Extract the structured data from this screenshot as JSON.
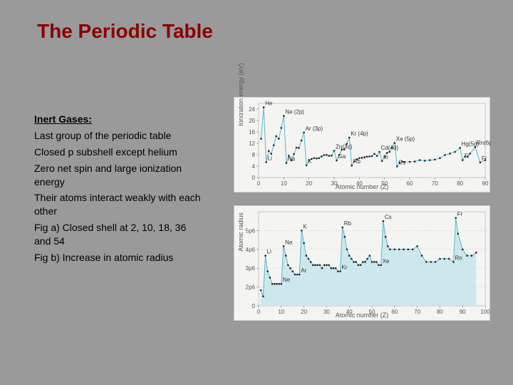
{
  "title": "The Periodic Table",
  "subtitle": "Inert Gases:",
  "bullets": [
    "Last group of the periodic table",
    "Closed p subshell except helium",
    "Zero net spin and large ionization energy",
    "Their atoms interact weakly with each other",
    "Fig a) Closed shell at 2, 10, 18, 36 and 54",
    "Fig b) Increase in atomic radius"
  ],
  "chart_a": {
    "type": "line",
    "xlabel": "Atomic number (Z)",
    "ylabel": "Ionization energy (eV)",
    "xlim": [
      0,
      90
    ],
    "ylim": [
      0,
      26
    ],
    "xtick_step": 10,
    "ytick_step": 4,
    "line_color": "#5bb5c9",
    "dot_color": "#222222",
    "background_color": "#f4f4f2",
    "grid_color": "#cccccc",
    "data": [
      {
        "z": 1,
        "y": 13.6
      },
      {
        "z": 2,
        "y": 24.6
      },
      {
        "z": 3,
        "y": 5.4
      },
      {
        "z": 4,
        "y": 9.3
      },
      {
        "z": 5,
        "y": 8.3
      },
      {
        "z": 6,
        "y": 11.3
      },
      {
        "z": 7,
        "y": 14.5
      },
      {
        "z": 8,
        "y": 13.6
      },
      {
        "z": 9,
        "y": 17.4
      },
      {
        "z": 10,
        "y": 21.6
      },
      {
        "z": 11,
        "y": 5.1
      },
      {
        "z": 12,
        "y": 7.6
      },
      {
        "z": 13,
        "y": 6.0
      },
      {
        "z": 14,
        "y": 8.2
      },
      {
        "z": 15,
        "y": 10.5
      },
      {
        "z": 16,
        "y": 10.4
      },
      {
        "z": 17,
        "y": 13.0
      },
      {
        "z": 18,
        "y": 15.8
      },
      {
        "z": 19,
        "y": 4.3
      },
      {
        "z": 20,
        "y": 6.1
      },
      {
        "z": 21,
        "y": 6.5
      },
      {
        "z": 22,
        "y": 6.8
      },
      {
        "z": 23,
        "y": 6.7
      },
      {
        "z": 24,
        "y": 6.8
      },
      {
        "z": 25,
        "y": 7.4
      },
      {
        "z": 26,
        "y": 7.9
      },
      {
        "z": 27,
        "y": 7.9
      },
      {
        "z": 28,
        "y": 7.6
      },
      {
        "z": 29,
        "y": 7.7
      },
      {
        "z": 30,
        "y": 9.4
      },
      {
        "z": 31,
        "y": 6.0
      },
      {
        "z": 32,
        "y": 7.9
      },
      {
        "z": 33,
        "y": 9.8
      },
      {
        "z": 34,
        "y": 9.8
      },
      {
        "z": 35,
        "y": 11.8
      },
      {
        "z": 36,
        "y": 14.0
      },
      {
        "z": 37,
        "y": 4.2
      },
      {
        "z": 38,
        "y": 5.7
      },
      {
        "z": 39,
        "y": 6.4
      },
      {
        "z": 40,
        "y": 6.8
      },
      {
        "z": 41,
        "y": 6.9
      },
      {
        "z": 42,
        "y": 7.1
      },
      {
        "z": 43,
        "y": 7.3
      },
      {
        "z": 44,
        "y": 7.4
      },
      {
        "z": 45,
        "y": 7.5
      },
      {
        "z": 46,
        "y": 8.3
      },
      {
        "z": 47,
        "y": 7.6
      },
      {
        "z": 48,
        "y": 9.0
      },
      {
        "z": 49,
        "y": 5.8
      },
      {
        "z": 50,
        "y": 7.3
      },
      {
        "z": 51,
        "y": 8.6
      },
      {
        "z": 52,
        "y": 9.0
      },
      {
        "z": 53,
        "y": 10.5
      },
      {
        "z": 54,
        "y": 12.1
      },
      {
        "z": 55,
        "y": 3.9
      },
      {
        "z": 56,
        "y": 5.2
      },
      {
        "z": 57,
        "y": 5.6
      },
      {
        "z": 58,
        "y": 5.5
      },
      {
        "z": 60,
        "y": 5.5
      },
      {
        "z": 62,
        "y": 5.6
      },
      {
        "z": 64,
        "y": 6.1
      },
      {
        "z": 66,
        "y": 5.9
      },
      {
        "z": 68,
        "y": 6.1
      },
      {
        "z": 70,
        "y": 6.3
      },
      {
        "z": 72,
        "y": 6.8
      },
      {
        "z": 74,
        "y": 7.9
      },
      {
        "z": 76,
        "y": 8.4
      },
      {
        "z": 78,
        "y": 9.0
      },
      {
        "z": 80,
        "y": 10.4
      },
      {
        "z": 81,
        "y": 6.1
      },
      {
        "z": 82,
        "y": 7.4
      },
      {
        "z": 83,
        "y": 7.3
      },
      {
        "z": 84,
        "y": 8.4
      },
      {
        "z": 86,
        "y": 10.7
      },
      {
        "z": 88,
        "y": 5.3
      },
      {
        "z": 90,
        "y": 6.1
      }
    ],
    "labels": [
      {
        "z": 2,
        "y": 24.6,
        "t": "He"
      },
      {
        "z": 10,
        "y": 21.6,
        "t": "Ne (2p)"
      },
      {
        "z": 18,
        "y": 15.8,
        "t": "Ar (3p)"
      },
      {
        "z": 30,
        "y": 9.4,
        "t": "Zn(3d)"
      },
      {
        "z": 36,
        "y": 14.0,
        "t": "Kr (4p)"
      },
      {
        "z": 48,
        "y": 9.0,
        "t": "Cd(4d)"
      },
      {
        "z": 54,
        "y": 12.1,
        "t": "Xe (5p)"
      },
      {
        "z": 80,
        "y": 10.4,
        "t": "Hg(5d)"
      },
      {
        "z": 86,
        "y": 10.7,
        "t": "Rn(6p)"
      },
      {
        "z": 3,
        "y": 5.4,
        "t": "Li"
      },
      {
        "z": 11,
        "y": 5.1,
        "t": "Na"
      },
      {
        "z": 19,
        "y": 4.3,
        "t": "K"
      },
      {
        "z": 31,
        "y": 6.0,
        "t": "Ga"
      },
      {
        "z": 37,
        "y": 4.2,
        "t": "Rb"
      },
      {
        "z": 49,
        "y": 5.8,
        "t": "In"
      },
      {
        "z": 55,
        "y": 3.9,
        "t": "Cs"
      },
      {
        "z": 81,
        "y": 6.1,
        "t": "Tl"
      },
      {
        "z": 88,
        "y": 5.3,
        "t": "Fr"
      }
    ]
  },
  "chart_b": {
    "type": "area",
    "xlabel": "Atomic number (Z)",
    "ylabel": "Atomic radius",
    "xlim": [
      0,
      100
    ],
    "ylim": [
      0,
      0.3
    ],
    "xtick_step": 10,
    "ytick_labels": [
      "0",
      "2p6",
      "3p6",
      "4p6",
      "5p6"
    ],
    "ytick_positions": [
      0,
      0.06,
      0.12,
      0.18,
      0.24
    ],
    "line_color": "#5bb5c9",
    "fill_color": "#c5e5eb",
    "dot_color": "#222222",
    "background_color": "#f4f4f2",
    "data": [
      {
        "z": 1,
        "y": 0.05
      },
      {
        "z": 2,
        "y": 0.03
      },
      {
        "z": 3,
        "y": 0.16
      },
      {
        "z": 4,
        "y": 0.11
      },
      {
        "z": 5,
        "y": 0.09
      },
      {
        "z": 6,
        "y": 0.07
      },
      {
        "z": 7,
        "y": 0.07
      },
      {
        "z": 8,
        "y": 0.07
      },
      {
        "z": 9,
        "y": 0.07
      },
      {
        "z": 10,
        "y": 0.07
      },
      {
        "z": 11,
        "y": 0.19
      },
      {
        "z": 12,
        "y": 0.16
      },
      {
        "z": 13,
        "y": 0.13
      },
      {
        "z": 14,
        "y": 0.12
      },
      {
        "z": 15,
        "y": 0.11
      },
      {
        "z": 16,
        "y": 0.1
      },
      {
        "z": 17,
        "y": 0.1
      },
      {
        "z": 18,
        "y": 0.1
      },
      {
        "z": 19,
        "y": 0.24
      },
      {
        "z": 20,
        "y": 0.2
      },
      {
        "z": 21,
        "y": 0.16
      },
      {
        "z": 22,
        "y": 0.15
      },
      {
        "z": 23,
        "y": 0.14
      },
      {
        "z": 24,
        "y": 0.13
      },
      {
        "z": 25,
        "y": 0.13
      },
      {
        "z": 26,
        "y": 0.13
      },
      {
        "z": 27,
        "y": 0.13
      },
      {
        "z": 28,
        "y": 0.12
      },
      {
        "z": 29,
        "y": 0.13
      },
      {
        "z": 30,
        "y": 0.13
      },
      {
        "z": 31,
        "y": 0.13
      },
      {
        "z": 32,
        "y": 0.12
      },
      {
        "z": 33,
        "y": 0.12
      },
      {
        "z": 34,
        "y": 0.12
      },
      {
        "z": 35,
        "y": 0.11
      },
      {
        "z": 36,
        "y": 0.11
      },
      {
        "z": 37,
        "y": 0.25
      },
      {
        "z": 38,
        "y": 0.22
      },
      {
        "z": 39,
        "y": 0.18
      },
      {
        "z": 40,
        "y": 0.16
      },
      {
        "z": 41,
        "y": 0.15
      },
      {
        "z": 42,
        "y": 0.14
      },
      {
        "z": 43,
        "y": 0.14
      },
      {
        "z": 44,
        "y": 0.13
      },
      {
        "z": 45,
        "y": 0.13
      },
      {
        "z": 46,
        "y": 0.14
      },
      {
        "z": 47,
        "y": 0.14
      },
      {
        "z": 48,
        "y": 0.15
      },
      {
        "z": 49,
        "y": 0.16
      },
      {
        "z": 50,
        "y": 0.14
      },
      {
        "z": 51,
        "y": 0.14
      },
      {
        "z": 52,
        "y": 0.14
      },
      {
        "z": 53,
        "y": 0.13
      },
      {
        "z": 54,
        "y": 0.13
      },
      {
        "z": 55,
        "y": 0.27
      },
      {
        "z": 56,
        "y": 0.22
      },
      {
        "z": 57,
        "y": 0.19
      },
      {
        "z": 58,
        "y": 0.18
      },
      {
        "z": 60,
        "y": 0.18
      },
      {
        "z": 62,
        "y": 0.18
      },
      {
        "z": 64,
        "y": 0.18
      },
      {
        "z": 66,
        "y": 0.18
      },
      {
        "z": 68,
        "y": 0.18
      },
      {
        "z": 70,
        "y": 0.19
      },
      {
        "z": 72,
        "y": 0.16
      },
      {
        "z": 74,
        "y": 0.14
      },
      {
        "z": 76,
        "y": 0.14
      },
      {
        "z": 78,
        "y": 0.14
      },
      {
        "z": 80,
        "y": 0.15
      },
      {
        "z": 82,
        "y": 0.15
      },
      {
        "z": 84,
        "y": 0.15
      },
      {
        "z": 86,
        "y": 0.14
      },
      {
        "z": 87,
        "y": 0.28
      },
      {
        "z": 88,
        "y": 0.23
      },
      {
        "z": 90,
        "y": 0.18
      },
      {
        "z": 92,
        "y": 0.16
      },
      {
        "z": 94,
        "y": 0.16
      },
      {
        "z": 96,
        "y": 0.17
      }
    ],
    "labels": [
      {
        "z": 3,
        "y": 0.16,
        "t": "Li"
      },
      {
        "z": 11,
        "y": 0.19,
        "t": "Na"
      },
      {
        "z": 19,
        "y": 0.24,
        "t": "K"
      },
      {
        "z": 37,
        "y": 0.25,
        "t": "Rb"
      },
      {
        "z": 55,
        "y": 0.27,
        "t": "Cs"
      },
      {
        "z": 87,
        "y": 0.28,
        "t": "Fr"
      },
      {
        "z": 10,
        "y": 0.07,
        "t": "Ne"
      },
      {
        "z": 18,
        "y": 0.1,
        "t": "Ar"
      },
      {
        "z": 36,
        "y": 0.11,
        "t": "Kr"
      },
      {
        "z": 54,
        "y": 0.13,
        "t": "Xe"
      },
      {
        "z": 86,
        "y": 0.14,
        "t": "Rn"
      }
    ]
  }
}
